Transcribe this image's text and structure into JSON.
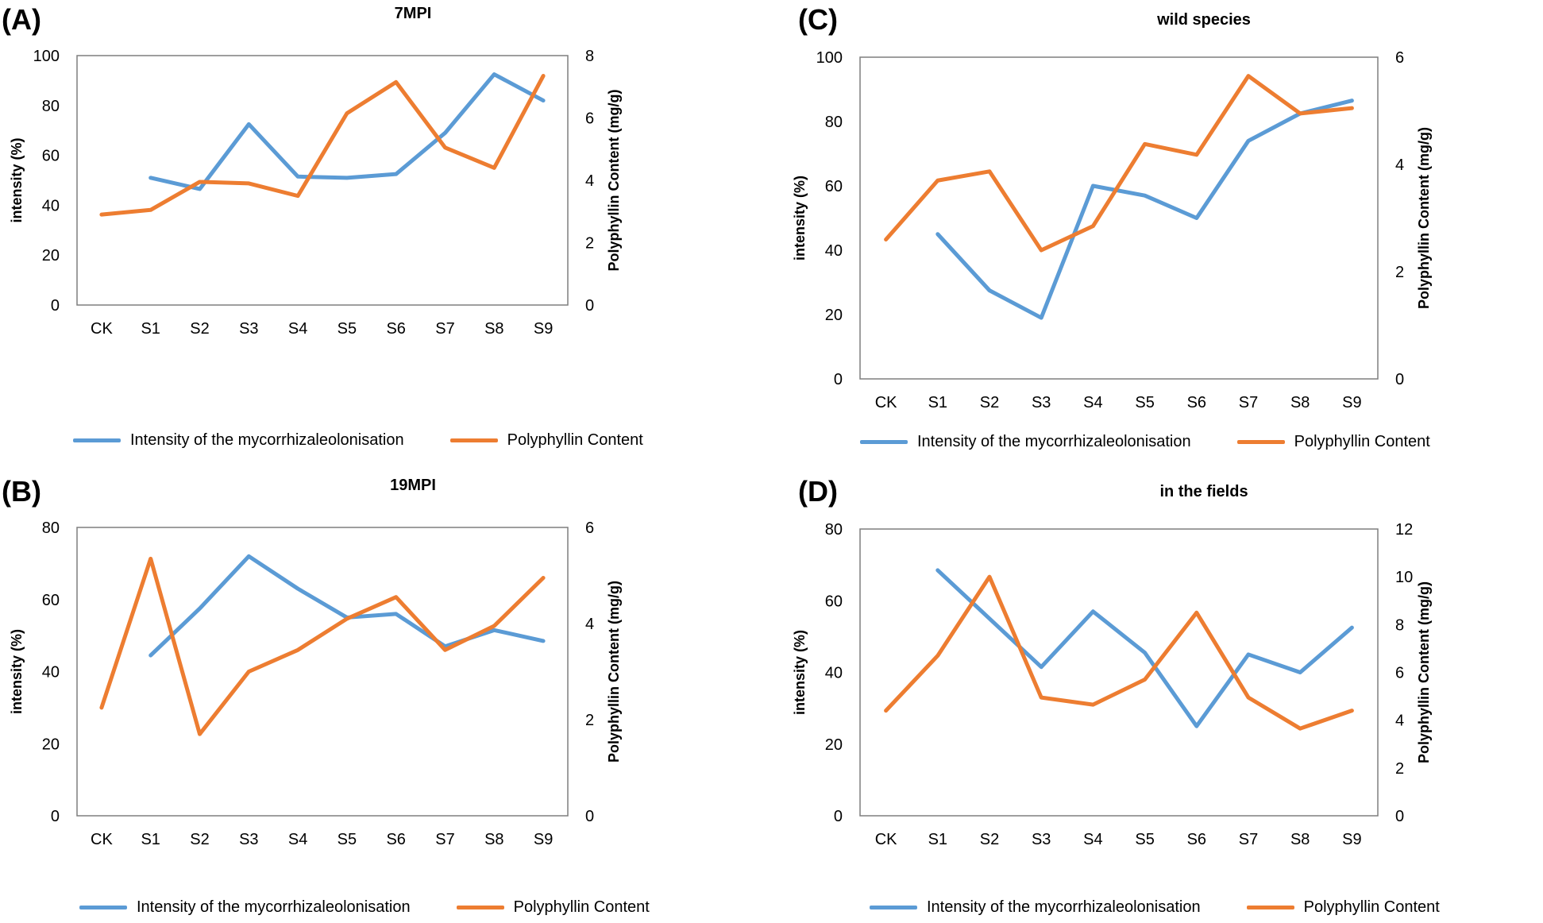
{
  "colors": {
    "intensity": "#5B9BD5",
    "polyphyllin": "#ED7D31"
  },
  "chart_data": [
    {
      "type": "line",
      "panel": "(A)",
      "title": "7MPI",
      "categories": [
        "CK",
        "S1",
        "S2",
        "S3",
        "S4",
        "S5",
        "S6",
        "S7",
        "S8",
        "S9"
      ],
      "ylabel": "intensity (%)",
      "y2label": "Polyphyllin Content (mg/g)",
      "ylim": [
        0,
        100
      ],
      "yticks": [
        0,
        20,
        40,
        60,
        80,
        100
      ],
      "y2lim": [
        0,
        8
      ],
      "y2ticks": [
        0,
        2,
        4,
        6,
        8
      ],
      "series": [
        {
          "name": "Intensity of the mycorrhizaleolonisation",
          "axis": "left",
          "values": [
            null,
            51,
            46.5,
            72.5,
            51.5,
            51,
            52.5,
            69,
            92.5,
            82
          ]
        },
        {
          "name": "Polyphyllin Content",
          "axis": "right",
          "values": [
            2.9,
            3.05,
            3.95,
            3.9,
            3.5,
            6.15,
            7.15,
            5.05,
            4.4,
            7.35
          ]
        }
      ],
      "legend": "bottom"
    },
    {
      "type": "line",
      "panel": "(B)",
      "title": "19MPI",
      "categories": [
        "CK",
        "S1",
        "S2",
        "S3",
        "S4",
        "S5",
        "S6",
        "S7",
        "S8",
        "S9"
      ],
      "ylabel": "intensity (%)",
      "y2label": "Polyphyllin Content (mg/g)",
      "ylim": [
        0,
        80
      ],
      "yticks": [
        0,
        20,
        40,
        60,
        80
      ],
      "y2lim": [
        0,
        6
      ],
      "y2ticks": [
        0,
        2,
        4,
        6
      ],
      "series": [
        {
          "name": "Intensity of the mycorrhizaleolonisation",
          "axis": "left",
          "values": [
            null,
            44.5,
            57.5,
            72,
            63,
            55,
            56,
            47,
            51.5,
            48.5
          ]
        },
        {
          "name": "Polyphyllin Content",
          "axis": "right",
          "values": [
            2.25,
            5.35,
            1.7,
            3,
            3.45,
            4.1,
            4.55,
            3.45,
            3.95,
            4.95
          ]
        }
      ],
      "legend": "bottom"
    },
    {
      "type": "line",
      "panel": "(C)",
      "title": "wild species",
      "categories": [
        "CK",
        "S1",
        "S2",
        "S3",
        "S4",
        "S5",
        "S6",
        "S7",
        "S8",
        "S9"
      ],
      "ylabel": "intensity (%)",
      "y2label": "Polyphyllin Content (mg/g)",
      "ylim": [
        0,
        100
      ],
      "yticks": [
        0,
        20,
        40,
        60,
        80,
        100
      ],
      "y2lim": [
        0,
        6
      ],
      "y2ticks": [
        0,
        2,
        4,
        6
      ],
      "series": [
        {
          "name": "Intensity of the mycorrhizaleolonisation",
          "axis": "left",
          "values": [
            null,
            45,
            27.5,
            19,
            60,
            57,
            50,
            74,
            82.5,
            86.5
          ]
        },
        {
          "name": "Polyphyllin Content",
          "axis": "right",
          "values": [
            2.6,
            3.7,
            3.87,
            2.4,
            2.85,
            4.38,
            4.18,
            5.65,
            4.95,
            5.05
          ]
        }
      ],
      "legend": "bottom"
    },
    {
      "type": "line",
      "panel": "(D)",
      "title": "in the fields",
      "categories": [
        "CK",
        "S1",
        "S2",
        "S3",
        "S4",
        "S5",
        "S6",
        "S7",
        "S8",
        "S9"
      ],
      "ylabel": "intensity (%)",
      "y2label": "Polyphyllin Content (mg/g)",
      "ylim": [
        0,
        80
      ],
      "yticks": [
        0,
        20,
        40,
        60,
        80
      ],
      "y2lim": [
        0,
        12
      ],
      "y2ticks": [
        0,
        2,
        4,
        6,
        8,
        10,
        12
      ],
      "series": [
        {
          "name": "Intensity of the mycorrhizaleolonisation",
          "axis": "left",
          "values": [
            null,
            68.5,
            55,
            41.5,
            57,
            45.5,
            25,
            45,
            40,
            52.5
          ]
        },
        {
          "name": "Polyphyllin Content",
          "axis": "right",
          "values": [
            4.4,
            6.7,
            10,
            4.95,
            4.65,
            5.7,
            8.5,
            4.95,
            3.65,
            4.4
          ]
        }
      ],
      "legend": "bottom"
    }
  ]
}
